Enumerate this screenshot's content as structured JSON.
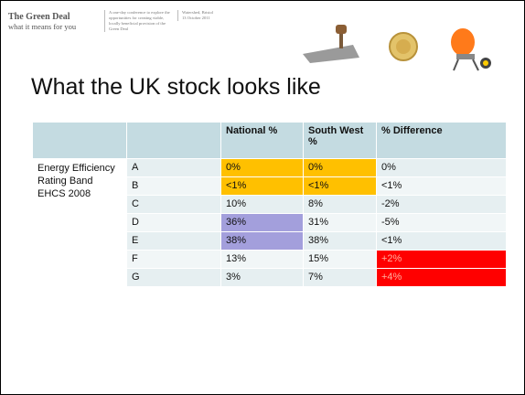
{
  "header": {
    "title": "The Green Deal",
    "subtitle": "what it means for you",
    "description": "A one-day conference to explore the opportunities for creating viable, locally beneficial provision of the Green Deal",
    "venue": "Watershed, Bristol",
    "date": "13 October 2011"
  },
  "slide": {
    "title": "What the UK stock looks like"
  },
  "table": {
    "columns": [
      "National %",
      "South West %",
      "% Difference"
    ],
    "row_group": "Energy Efficiency Rating Band EHCS 2008",
    "rows": [
      [
        "A",
        "0%",
        "0%",
        "0%"
      ],
      [
        "B",
        "<1%",
        "<1%",
        "<1%"
      ],
      [
        "C",
        "10%",
        "8%",
        "-2%"
      ],
      [
        "D",
        "36%",
        "31%",
        "-5%"
      ],
      [
        "E",
        "38%",
        "38%",
        "<1%"
      ],
      [
        "F",
        "13%",
        "15%",
        "+2%"
      ],
      [
        "G",
        "3%",
        "7%",
        "+4%"
      ]
    ]
  }
}
